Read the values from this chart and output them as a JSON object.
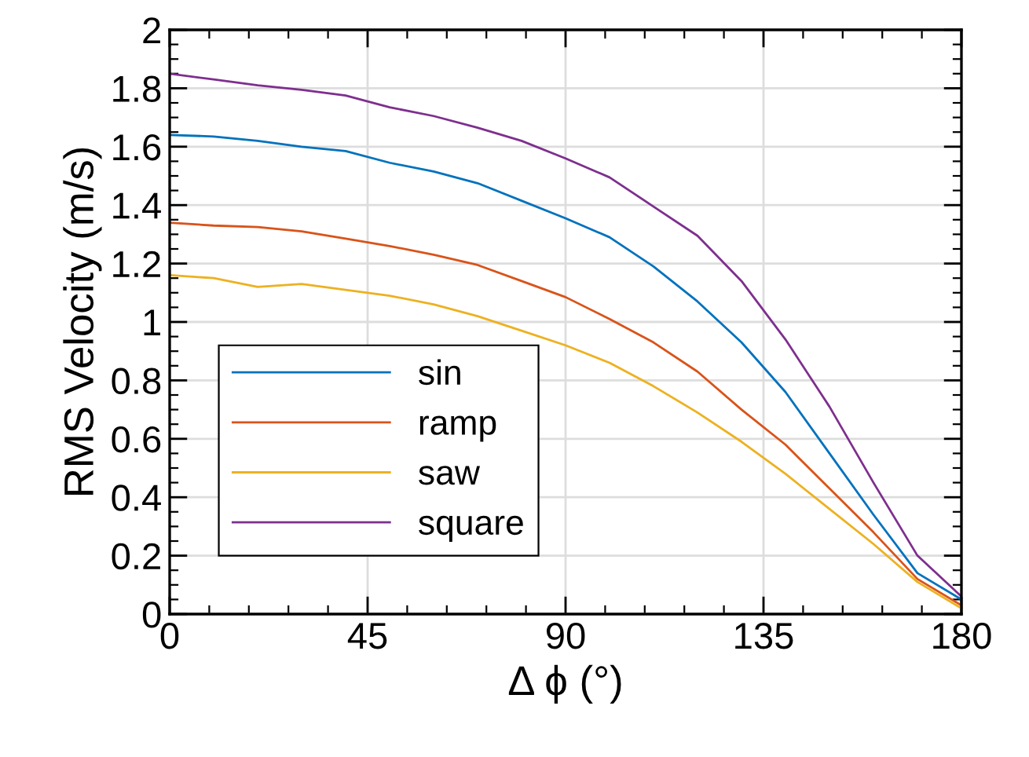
{
  "chart_data": {
    "type": "line",
    "xlabel": "Δ ϕ (°)",
    "ylabel": "RMS Velocity (m/s)",
    "x": [
      0,
      10,
      20,
      30,
      40,
      50,
      60,
      70,
      80,
      90,
      100,
      110,
      120,
      130,
      140,
      150,
      160,
      170,
      180
    ],
    "series": [
      {
        "name": "sin",
        "color": "#0072bd",
        "values": [
          1.64,
          1.635,
          1.62,
          1.6,
          1.585,
          1.545,
          1.515,
          1.475,
          1.415,
          1.355,
          1.29,
          1.19,
          1.07,
          0.93,
          0.76,
          0.55,
          0.34,
          0.14,
          0.05
        ]
      },
      {
        "name": "ramp",
        "color": "#d95319",
        "values": [
          1.34,
          1.33,
          1.325,
          1.31,
          1.285,
          1.26,
          1.23,
          1.195,
          1.14,
          1.085,
          1.01,
          0.93,
          0.83,
          0.7,
          0.58,
          0.43,
          0.28,
          0.12,
          0.03
        ]
      },
      {
        "name": "saw",
        "color": "#edb120",
        "values": [
          1.16,
          1.15,
          1.12,
          1.13,
          1.11,
          1.09,
          1.06,
          1.02,
          0.97,
          0.92,
          0.86,
          0.78,
          0.69,
          0.59,
          0.48,
          0.36,
          0.24,
          0.11,
          0.02
        ]
      },
      {
        "name": "square",
        "color": "#7e2f8e",
        "values": [
          1.85,
          1.83,
          1.81,
          1.795,
          1.775,
          1.735,
          1.705,
          1.665,
          1.62,
          1.56,
          1.495,
          1.395,
          1.295,
          1.14,
          0.94,
          0.71,
          0.45,
          0.2,
          0.06
        ]
      }
    ],
    "xlim": [
      0,
      180
    ],
    "xticks": [
      0,
      45,
      90,
      135,
      180
    ],
    "ylim": [
      0,
      2
    ],
    "yticks": [
      0,
      0.2,
      0.4,
      0.6,
      0.8,
      1,
      1.2,
      1.4,
      1.6,
      1.8,
      2
    ],
    "grid": true,
    "legend": "bottom left",
    "marker": "none",
    "line_style": "solid"
  }
}
